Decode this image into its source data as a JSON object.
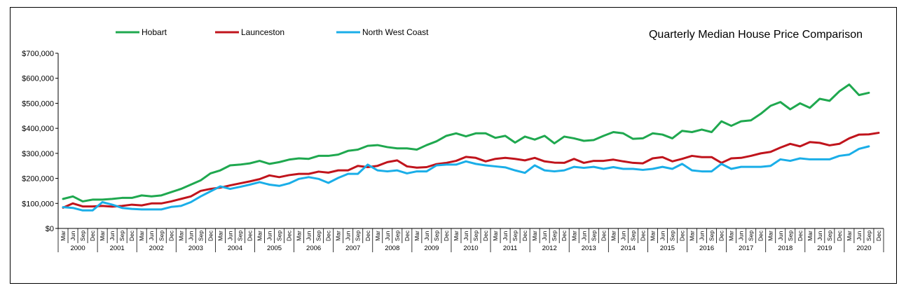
{
  "chart_data": {
    "type": "line",
    "title": "Quarterly Median House Price Comparison",
    "xlabel": "",
    "ylabel": "",
    "ylim": [
      0,
      700000
    ],
    "yticks": [
      0,
      100000,
      200000,
      300000,
      400000,
      500000,
      600000,
      700000
    ],
    "ytick_labels": [
      "$0",
      "$100,000",
      "$200,000",
      "$300,000",
      "$400,000",
      "$500,000",
      "$600,000",
      "$700,000"
    ],
    "quarter_labels": [
      "Mar",
      "Jun",
      "Sep",
      "Dec"
    ],
    "years": [
      "2000",
      "2001",
      "2002",
      "2003",
      "2004",
      "2005",
      "2006",
      "2007",
      "2008",
      "2009",
      "2010",
      "2011",
      "2012",
      "2013",
      "2014",
      "2015",
      "2016",
      "2017",
      "2018",
      "2019",
      "2020"
    ],
    "legend_position": "top-left",
    "grid": false,
    "series": [
      {
        "name": "Hobart",
        "color": "#1fa84f",
        "values": [
          118000,
          128000,
          108000,
          115000,
          115000,
          118000,
          122000,
          122000,
          132000,
          128000,
          132000,
          145000,
          158000,
          175000,
          192000,
          220000,
          232000,
          252000,
          255000,
          260000,
          270000,
          258000,
          265000,
          275000,
          280000,
          278000,
          290000,
          290000,
          295000,
          310000,
          315000,
          330000,
          333000,
          325000,
          320000,
          320000,
          315000,
          333000,
          348000,
          370000,
          380000,
          368000,
          380000,
          380000,
          362000,
          370000,
          343000,
          367000,
          355000,
          370000,
          340000,
          367000,
          360000,
          350000,
          353000,
          370000,
          385000,
          380000,
          358000,
          360000,
          380000,
          375000,
          360000,
          390000,
          385000,
          395000,
          385000,
          428000,
          410000,
          428000,
          432000,
          458000,
          490000,
          505000,
          476000,
          500000,
          482000,
          518000,
          510000,
          548000,
          575000,
          533000,
          542000
        ]
      },
      {
        "name": "Launceston",
        "color": "#c0141c",
        "values": [
          83000,
          100000,
          88000,
          88000,
          90000,
          87000,
          90000,
          95000,
          92000,
          100000,
          100000,
          108000,
          118000,
          128000,
          150000,
          158000,
          163000,
          172000,
          180000,
          188000,
          197000,
          212000,
          205000,
          213000,
          218000,
          218000,
          227000,
          223000,
          232000,
          232000,
          250000,
          245000,
          250000,
          265000,
          272000,
          248000,
          243000,
          245000,
          257000,
          262000,
          270000,
          286000,
          282000,
          268000,
          278000,
          282000,
          278000,
          272000,
          282000,
          268000,
          263000,
          262000,
          278000,
          262000,
          270000,
          270000,
          275000,
          268000,
          262000,
          260000,
          280000,
          285000,
          268000,
          278000,
          290000,
          285000,
          285000,
          262000,
          280000,
          282000,
          290000,
          300000,
          306000,
          323000,
          338000,
          328000,
          345000,
          342000,
          332000,
          338000,
          360000,
          375000,
          376000,
          382000
        ]
      },
      {
        "name": "North West Coast",
        "color": "#1aaee8",
        "values": [
          85000,
          82000,
          72000,
          72000,
          105000,
          95000,
          82000,
          78000,
          76000,
          76000,
          76000,
          86000,
          90000,
          105000,
          128000,
          148000,
          168000,
          158000,
          166000,
          175000,
          185000,
          175000,
          170000,
          180000,
          198000,
          205000,
          198000,
          182000,
          202000,
          218000,
          218000,
          255000,
          232000,
          228000,
          232000,
          220000,
          228000,
          228000,
          252000,
          255000,
          255000,
          268000,
          258000,
          252000,
          248000,
          244000,
          232000,
          222000,
          252000,
          232000,
          228000,
          232000,
          246000,
          242000,
          246000,
          238000,
          245000,
          238000,
          238000,
          234000,
          238000,
          246000,
          238000,
          258000,
          232000,
          228000,
          228000,
          258000,
          238000,
          246000,
          246000,
          246000,
          250000,
          276000,
          270000,
          280000,
          276000,
          276000,
          276000,
          290000,
          295000,
          318000,
          328000
        ]
      }
    ]
  }
}
